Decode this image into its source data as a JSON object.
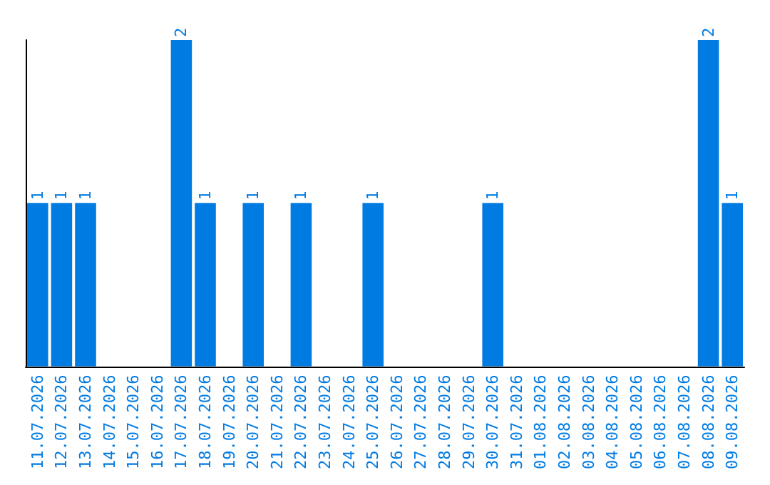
{
  "chart_data": {
    "type": "bar",
    "categories": [
      "11.07.2026",
      "12.07.2026",
      "13.07.2026",
      "14.07.2026",
      "15.07.2026",
      "16.07.2026",
      "17.07.2026",
      "18.07.2026",
      "19.07.2026",
      "20.07.2026",
      "21.07.2026",
      "22.07.2026",
      "23.07.2026",
      "24.07.2026",
      "25.07.2026",
      "26.07.2026",
      "27.07.2026",
      "28.07.2026",
      "29.07.2026",
      "30.07.2026",
      "31.07.2026",
      "01.08.2026",
      "02.08.2026",
      "03.08.2026",
      "04.08.2026",
      "05.08.2026",
      "06.08.2026",
      "07.08.2026",
      "08.08.2026",
      "09.08.2026"
    ],
    "values": [
      1,
      1,
      1,
      0,
      0,
      0,
      2,
      1,
      0,
      1,
      0,
      1,
      0,
      0,
      1,
      0,
      0,
      0,
      0,
      1,
      0,
      0,
      0,
      0,
      0,
      0,
      0,
      0,
      2,
      1
    ],
    "value_labels": [
      "1",
      "1",
      "1",
      null,
      null,
      null,
      "2",
      "1",
      null,
      "1",
      null,
      "1",
      null,
      null,
      "1",
      null,
      null,
      null,
      null,
      "1",
      null,
      null,
      null,
      null,
      null,
      null,
      null,
      null,
      "2",
      "1"
    ],
    "color": "#007be2",
    "tick_labels": "x"
  }
}
